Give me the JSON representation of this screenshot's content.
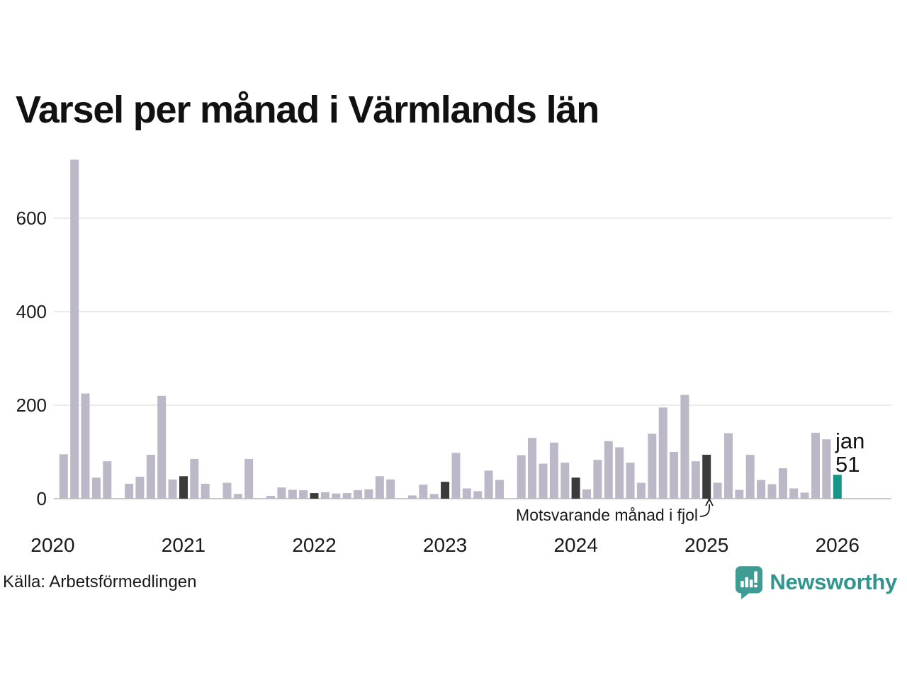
{
  "source": "Källa: Arbetsförmedlingen",
  "logo": {
    "text": "Newsworthy",
    "icon_color": "#3e9c94",
    "text_color": "#2f958d"
  },
  "chart_data": {
    "type": "bar",
    "title": "Varsel per månad i Värmlands län",
    "y_ticks": [
      0,
      200,
      400,
      600
    ],
    "ylim": [
      0,
      760
    ],
    "x_tick_labels": [
      "2020",
      "2021",
      "2022",
      "2023",
      "2024",
      "2025",
      "2026"
    ],
    "grid": "horizontal",
    "series": [
      {
        "year": 2020,
        "values": [
          0,
          95,
          725,
          225,
          45,
          80,
          0,
          32,
          47,
          94,
          220,
          41
        ]
      },
      {
        "year": 2021,
        "values": [
          48,
          85,
          32,
          0,
          34,
          10,
          85,
          0,
          6,
          24,
          19,
          18
        ]
      },
      {
        "year": 2022,
        "values": [
          12,
          14,
          11,
          12,
          18,
          20,
          48,
          41,
          0,
          7,
          30,
          10
        ]
      },
      {
        "year": 2023,
        "values": [
          36,
          98,
          22,
          16,
          60,
          40,
          0,
          93,
          130,
          75,
          120,
          77
        ]
      },
      {
        "year": 2024,
        "values": [
          45,
          20,
          83,
          123,
          110,
          77,
          34,
          139,
          195,
          100,
          222,
          80
        ]
      },
      {
        "year": 2025,
        "values": [
          94,
          34,
          140,
          19,
          94,
          40,
          31,
          65,
          22,
          13,
          141,
          127
        ]
      },
      {
        "year": 2026,
        "values": [
          51
        ]
      }
    ],
    "highlight_rule": "january bars shown dark; latest month shown teal",
    "annotation": "Motsvarande månad i fjol",
    "latest_label": {
      "month": "jan",
      "value": 51
    },
    "colors": {
      "bar": "#bcb8c8",
      "highlight": "#3b3b3b",
      "latest": "#179589"
    }
  }
}
